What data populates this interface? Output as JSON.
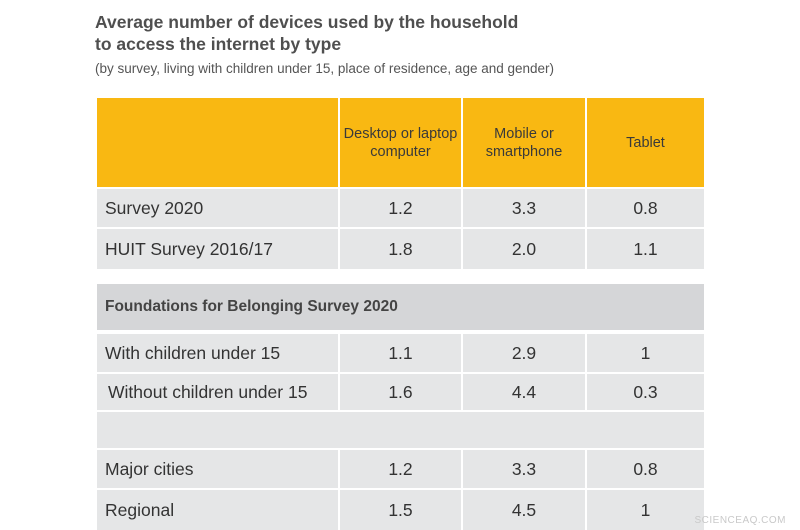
{
  "title": {
    "line1": "Average number of devices used by the household",
    "line2": "to access the internet by type"
  },
  "subtitle": "(by survey, living with children under 15, place of residence, age and gender)",
  "columns": {
    "desktop": "Desktop or laptop computer",
    "mobile": "Mobile or smartphone",
    "tablet": "Tablet"
  },
  "rows": [
    {
      "label": "Survey 2020",
      "desktop": "1.2",
      "mobile": "3.3",
      "tablet": "0.8"
    },
    {
      "label": "HUIT Survey 2016/17",
      "desktop": "1.8",
      "mobile": "2.0",
      "tablet": "1.1"
    },
    {
      "label": "With children under 15",
      "desktop": "1.1",
      "mobile": "2.9",
      "tablet": "1"
    },
    {
      "label": "Without children under 15",
      "desktop": "1.6",
      "mobile": "4.4",
      "tablet": "0.3"
    },
    {
      "label": "Major cities",
      "desktop": "1.2",
      "mobile": "3.3",
      "tablet": "0.8"
    },
    {
      "label": "Regional",
      "desktop": "1.5",
      "mobile": "4.5",
      "tablet": "1"
    }
  ],
  "section_heading": "Foundations for Belonging Survey 2020",
  "watermark": "SCIENCEAQ.COM"
}
